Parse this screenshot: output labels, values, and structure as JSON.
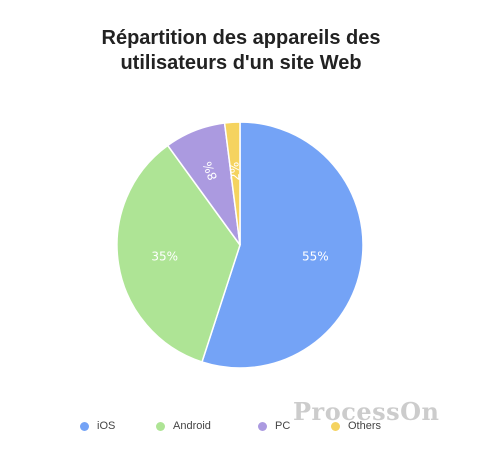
{
  "chart_data": {
    "type": "pie",
    "title": "Répartition des appareils des\nutilisateurs d'un site Web",
    "categories": [
      "iOS",
      "Android",
      "PC",
      "Others"
    ],
    "values": [
      55,
      35,
      8,
      2
    ],
    "labels": [
      "55%",
      "35%",
      "8%",
      "2%"
    ],
    "colors": [
      "#74a3f6",
      "#aee495",
      "#ab9ae0",
      "#f5d35f"
    ],
    "legend_position": "bottom"
  },
  "watermark": "ProcessOn"
}
